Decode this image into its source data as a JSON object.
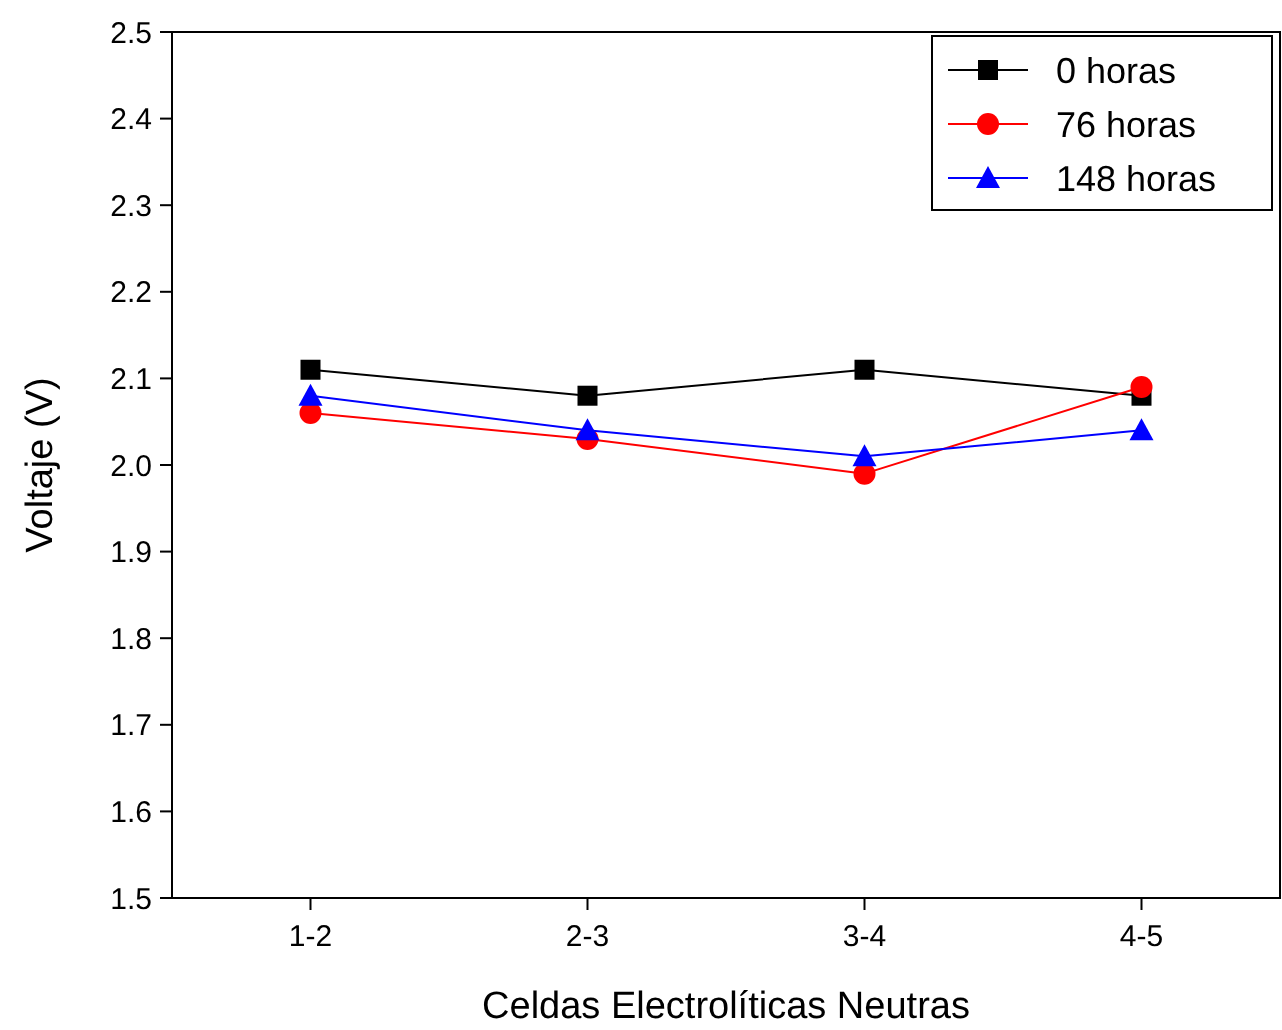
{
  "chart_data": {
    "type": "line",
    "xlabel": "Celdas Electrolíticas Neutras",
    "ylabel": "Voltaje (V)",
    "categories": [
      "1-2",
      "2-3",
      "3-4",
      "4-5"
    ],
    "ylim": [
      1.5,
      2.5
    ],
    "yticks": [
      {
        "value": 1.5,
        "label": "1.5"
      },
      {
        "value": 1.6,
        "label": "1.6"
      },
      {
        "value": 1.7,
        "label": "1.7"
      },
      {
        "value": 1.8,
        "label": "1.8"
      },
      {
        "value": 1.9,
        "label": "1.9"
      },
      {
        "value": 2.0,
        "label": "2.0"
      },
      {
        "value": 2.1,
        "label": "2.1"
      },
      {
        "value": 2.2,
        "label": "2.2"
      },
      {
        "value": 2.3,
        "label": "2.3"
      },
      {
        "value": 2.4,
        "label": "2.4"
      },
      {
        "value": 2.5,
        "label": "2.5"
      }
    ],
    "grid": false,
    "legend": "top right",
    "line_style": "solid",
    "series": [
      {
        "name": "0 horas",
        "color": "#000000",
        "marker": "square",
        "values": [
          2.11,
          2.08,
          2.11,
          2.08
        ]
      },
      {
        "name": "76 horas",
        "color": "#ff0000",
        "marker": "circle",
        "values": [
          2.06,
          2.03,
          1.99,
          2.09
        ]
      },
      {
        "name": "148 horas",
        "color": "#0000ff",
        "marker": "triangle",
        "values": [
          2.08,
          2.04,
          2.01,
          2.04
        ]
      }
    ]
  }
}
